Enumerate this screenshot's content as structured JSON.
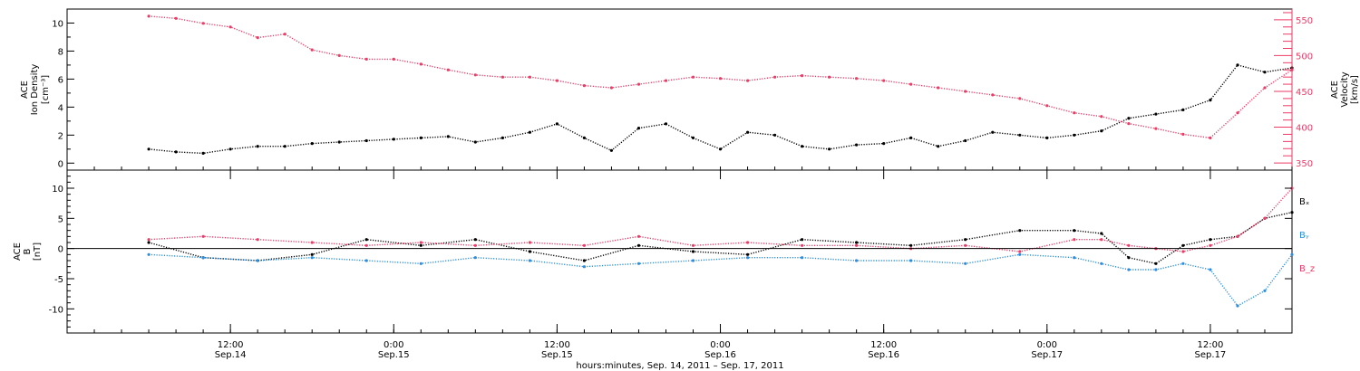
{
  "colors": {
    "black": "#000000",
    "pink": "#ee3a66",
    "blue": "#2a8ee0"
  },
  "x_axis": {
    "title": "hours:minutes, Sep. 14, 2011 – Sep. 17, 2011",
    "ticks": [
      {
        "time": "12:00",
        "date": "Sep.14"
      },
      {
        "time": "0:00",
        "date": "Sep.15"
      },
      {
        "time": "12:00",
        "date": "Sep.15"
      },
      {
        "time": "0:00",
        "date": "Sep.16"
      },
      {
        "time": "12:00",
        "date": "Sep.16"
      },
      {
        "time": "0:00",
        "date": "Sep.17"
      },
      {
        "time": "12:00",
        "date": "Sep.17"
      }
    ]
  },
  "top_panel": {
    "left_label": [
      "ACE",
      "Ion Density",
      "[cm⁻³]"
    ],
    "right_label": [
      "ACE",
      "Velocity",
      "[km/s]"
    ],
    "left_ticks": [
      "0",
      "2",
      "4",
      "6",
      "8",
      "10"
    ],
    "right_ticks": [
      "350",
      "400",
      "450",
      "500",
      "550"
    ]
  },
  "bottom_panel": {
    "left_label": [
      "ACE",
      "B",
      "[nT]"
    ],
    "left_ticks": [
      "-10",
      "-5",
      "0",
      "5",
      "10"
    ],
    "legend": [
      "Bₓ",
      "Bᵧ",
      "B_z"
    ]
  },
  "chart_data": [
    {
      "type": "scatter",
      "title": "",
      "xlabel": "hours:minutes, Sep. 14, 2011 – Sep. 17, 2011",
      "x_range_hours": [
        -6,
        84
      ],
      "x_reference": "2011-09-14 06:00",
      "series": [
        {
          "name": "",
          "axis": "left",
          "ylabel": "ACE Ion Density [cm⁻³]",
          "ylim": [
            -0.5,
            11
          ],
          "color": "#000000",
          "points": [
            [
              0,
              1.0
            ],
            [
              2,
              0.8
            ],
            [
              4,
              0.7
            ],
            [
              6,
              1.0
            ],
            [
              8,
              1.2
            ],
            [
              10,
              1.2
            ],
            [
              12,
              1.4
            ],
            [
              14,
              1.5
            ],
            [
              16,
              1.6
            ],
            [
              18,
              1.7
            ],
            [
              20,
              1.8
            ],
            [
              22,
              1.9
            ],
            [
              24,
              1.5
            ],
            [
              26,
              1.8
            ],
            [
              28,
              2.2
            ],
            [
              30,
              2.8
            ],
            [
              32,
              1.8
            ],
            [
              34,
              0.9
            ],
            [
              36,
              2.5
            ],
            [
              38,
              2.8
            ],
            [
              40,
              1.8
            ],
            [
              42,
              1.0
            ],
            [
              44,
              2.2
            ],
            [
              46,
              2.0
            ],
            [
              48,
              1.2
            ],
            [
              50,
              1.0
            ],
            [
              52,
              1.3
            ],
            [
              54,
              1.4
            ],
            [
              56,
              1.8
            ],
            [
              58,
              1.2
            ],
            [
              60,
              1.6
            ],
            [
              62,
              2.2
            ],
            [
              64,
              2.0
            ],
            [
              66,
              1.8
            ],
            [
              68,
              2.0
            ],
            [
              70,
              2.3
            ],
            [
              72,
              3.2
            ],
            [
              74,
              3.5
            ],
            [
              76,
              3.8
            ],
            [
              78,
              4.5
            ],
            [
              80,
              7.0
            ],
            [
              82,
              6.5
            ],
            [
              84,
              6.8
            ]
          ]
        },
        {
          "name": "",
          "axis": "right",
          "ylabel": "ACE Velocity [km/s]",
          "ylim": [
            340,
            565
          ],
          "color": "#ee3a66",
          "points": [
            [
              0,
              555
            ],
            [
              2,
              552
            ],
            [
              4,
              545
            ],
            [
              6,
              540
            ],
            [
              8,
              525
            ],
            [
              10,
              530
            ],
            [
              12,
              508
            ],
            [
              14,
              500
            ],
            [
              16,
              495
            ],
            [
              18,
              495
            ],
            [
              20,
              488
            ],
            [
              22,
              480
            ],
            [
              24,
              473
            ],
            [
              26,
              470
            ],
            [
              28,
              470
            ],
            [
              30,
              465
            ],
            [
              32,
              458
            ],
            [
              34,
              455
            ],
            [
              36,
              460
            ],
            [
              38,
              465
            ],
            [
              40,
              470
            ],
            [
              42,
              468
            ],
            [
              44,
              465
            ],
            [
              46,
              470
            ],
            [
              48,
              472
            ],
            [
              50,
              470
            ],
            [
              52,
              468
            ],
            [
              54,
              465
            ],
            [
              56,
              460
            ],
            [
              58,
              455
            ],
            [
              60,
              450
            ],
            [
              62,
              445
            ],
            [
              64,
              440
            ],
            [
              66,
              430
            ],
            [
              68,
              420
            ],
            [
              70,
              415
            ],
            [
              72,
              405
            ],
            [
              74,
              398
            ],
            [
              76,
              390
            ],
            [
              78,
              385
            ],
            [
              80,
              420
            ],
            [
              82,
              455
            ],
            [
              84,
              480
            ]
          ]
        }
      ]
    },
    {
      "type": "scatter",
      "title": "",
      "xlabel": "hours:minutes, Sep. 14, 2011 – Sep. 17, 2011",
      "x_range_hours": [
        -6,
        84
      ],
      "x_reference": "2011-09-14 06:00",
      "ylabel": "ACE B [nT]",
      "ylim": [
        -14,
        13
      ],
      "series": [
        {
          "name": "Bₓ",
          "color": "#000000",
          "points": [
            [
              0,
              1.0
            ],
            [
              4,
              -1.5
            ],
            [
              8,
              -2.0
            ],
            [
              12,
              -1.0
            ],
            [
              16,
              1.5
            ],
            [
              20,
              0.5
            ],
            [
              24,
              1.5
            ],
            [
              28,
              -0.5
            ],
            [
              32,
              -2.0
            ],
            [
              36,
              0.5
            ],
            [
              40,
              -0.5
            ],
            [
              44,
              -1.0
            ],
            [
              48,
              1.5
            ],
            [
              52,
              1.0
            ],
            [
              56,
              0.5
            ],
            [
              60,
              1.5
            ],
            [
              64,
              3.0
            ],
            [
              68,
              3.0
            ],
            [
              70,
              2.5
            ],
            [
              72,
              -1.5
            ],
            [
              74,
              -2.5
            ],
            [
              76,
              0.5
            ],
            [
              78,
              1.5
            ],
            [
              80,
              2.0
            ],
            [
              82,
              5.0
            ],
            [
              84,
              6.0
            ]
          ]
        },
        {
          "name": "Bᵧ",
          "color": "#2a8ee0",
          "points": [
            [
              0,
              -1.0
            ],
            [
              4,
              -1.5
            ],
            [
              8,
              -2.0
            ],
            [
              12,
              -1.5
            ],
            [
              16,
              -2.0
            ],
            [
              20,
              -2.5
            ],
            [
              24,
              -1.5
            ],
            [
              28,
              -2.0
            ],
            [
              32,
              -3.0
            ],
            [
              36,
              -2.5
            ],
            [
              40,
              -2.0
            ],
            [
              44,
              -1.5
            ],
            [
              48,
              -1.5
            ],
            [
              52,
              -2.0
            ],
            [
              56,
              -2.0
            ],
            [
              60,
              -2.5
            ],
            [
              64,
              -1.0
            ],
            [
              68,
              -1.5
            ],
            [
              70,
              -2.5
            ],
            [
              72,
              -3.5
            ],
            [
              74,
              -3.5
            ],
            [
              76,
              -2.5
            ],
            [
              78,
              -3.5
            ],
            [
              80,
              -9.5
            ],
            [
              82,
              -7.0
            ],
            [
              84,
              -1.0
            ]
          ]
        },
        {
          "name": "B_z",
          "color": "#ee3a66",
          "points": [
            [
              0,
              1.5
            ],
            [
              4,
              2.0
            ],
            [
              8,
              1.5
            ],
            [
              12,
              1.0
            ],
            [
              16,
              0.5
            ],
            [
              20,
              1.0
            ],
            [
              24,
              0.5
            ],
            [
              28,
              1.0
            ],
            [
              32,
              0.5
            ],
            [
              36,
              2.0
            ],
            [
              40,
              0.5
            ],
            [
              44,
              1.0
            ],
            [
              48,
              0.5
            ],
            [
              52,
              0.5
            ],
            [
              56,
              0.0
            ],
            [
              60,
              0.5
            ],
            [
              64,
              -0.5
            ],
            [
              68,
              1.5
            ],
            [
              70,
              1.5
            ],
            [
              72,
              0.5
            ],
            [
              74,
              0.0
            ],
            [
              76,
              -0.5
            ],
            [
              78,
              0.5
            ],
            [
              80,
              2.0
            ],
            [
              82,
              5.0
            ],
            [
              84,
              10.0
            ]
          ]
        }
      ]
    }
  ]
}
